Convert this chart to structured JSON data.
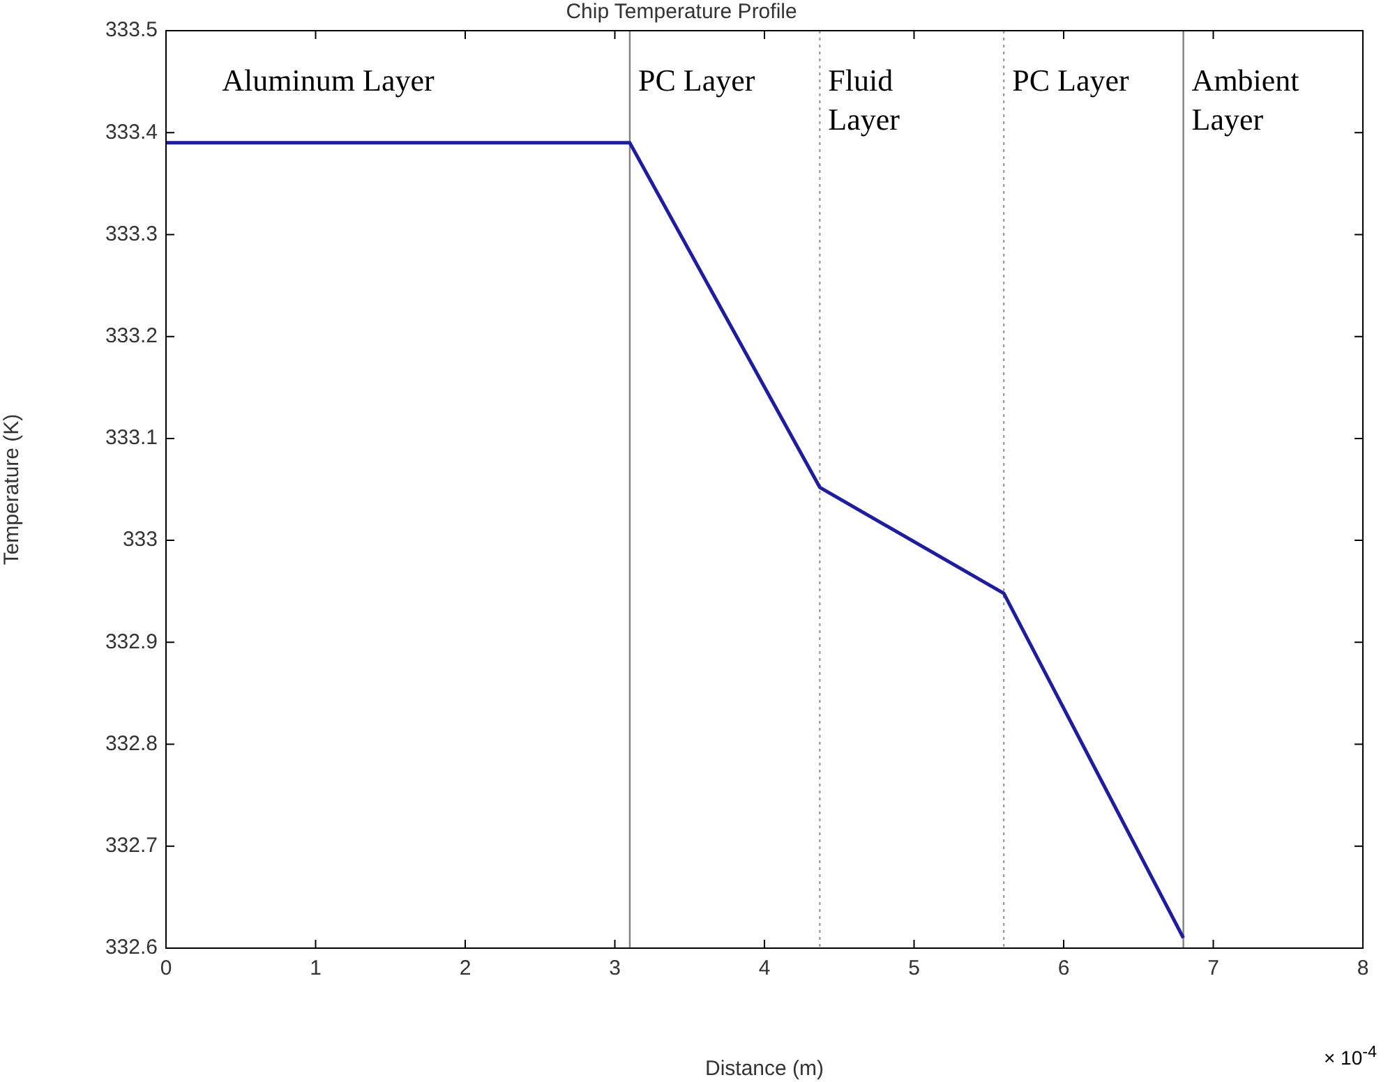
{
  "chart_data": {
    "type": "line",
    "title": "Chip Temperature Profile",
    "xlabel": "Distance (m)",
    "ylabel": "Temperature (K)",
    "x": [
      0,
      3.1,
      4.37,
      5.6,
      6.8
    ],
    "series": [
      {
        "color": "#1c1ca8",
        "values": [
          333.39,
          333.39,
          333.052,
          332.948,
          332.61
        ]
      }
    ],
    "xlim": [
      0,
      8
    ],
    "xticks": [
      0,
      1,
      2,
      3,
      4,
      5,
      6,
      7,
      8
    ],
    "ylim": [
      332.6,
      333.5
    ],
    "yticks": [
      332.6,
      332.7,
      332.8,
      332.9,
      333,
      333.1,
      333.2,
      333.3,
      333.4,
      333.5
    ],
    "grid": false,
    "legend": false,
    "marker": "none",
    "line_style": "solid",
    "ref_lines": [
      {
        "axis": "x",
        "value": 3.1,
        "color": "#808080",
        "line_style": "solid"
      },
      {
        "axis": "x",
        "value": 4.37,
        "color": "#a0a0a0",
        "line_style": "dotted"
      },
      {
        "axis": "x",
        "value": 5.6,
        "color": "#a0a0a0",
        "line_style": "dotted"
      },
      {
        "axis": "x",
        "value": 6.8,
        "color": "#808080",
        "line_style": "solid"
      }
    ],
    "annotations": [
      "Aluminum Layer",
      "PC Layer",
      "Fluid\nLayer",
      "PC Layer",
      "Ambient\nLayer",
      "× 10$^{-4}$"
    ]
  }
}
